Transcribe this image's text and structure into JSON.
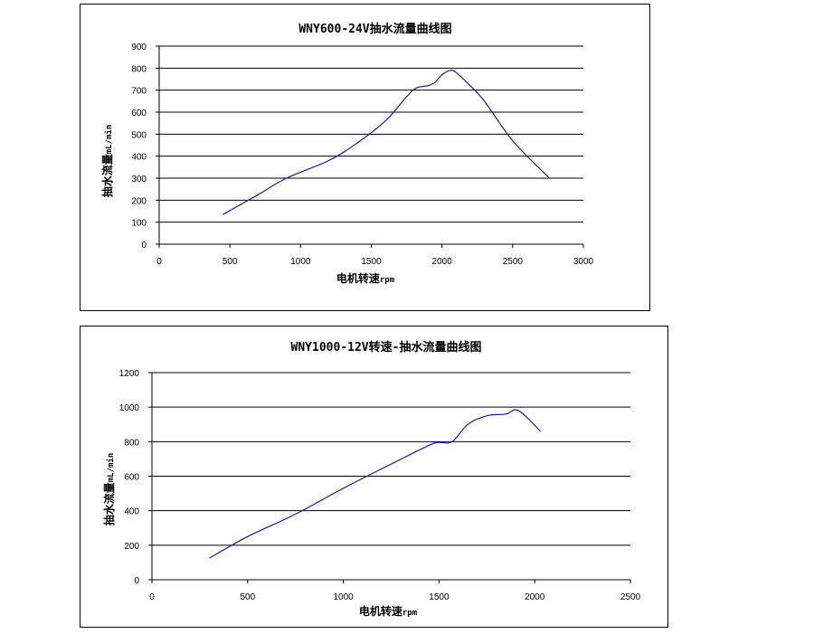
{
  "chart_data": [
    {
      "type": "line",
      "title": "WNY600-24V抽水流量曲线图",
      "xlabel": "电机转速",
      "xlabel_unit": "rpm",
      "ylabel": "抽水流量",
      "ylabel_unit": "mL/min",
      "xlim": [
        0,
        3000
      ],
      "ylim": [
        0,
        900
      ],
      "xticks": [
        0,
        500,
        1000,
        1500,
        2000,
        2500,
        3000
      ],
      "yticks": [
        0,
        100,
        200,
        300,
        400,
        500,
        600,
        700,
        800,
        900
      ],
      "grid": "horizontal",
      "series": [
        {
          "color": "#1a1a8c",
          "x": [
            450,
            700,
            900,
            1200,
            1400,
            1600,
            1750,
            1820,
            1900,
            1950,
            2000,
            2060,
            2100,
            2200,
            2300,
            2500,
            2760
          ],
          "y": [
            135,
            225,
            300,
            380,
            460,
            560,
            670,
            710,
            720,
            735,
            770,
            790,
            780,
            720,
            650,
            470,
            300
          ]
        }
      ]
    },
    {
      "type": "line",
      "title": "WNY1000-12V转速-抽水流量曲线图",
      "xlabel": "电机转速",
      "xlabel_unit": "rpm",
      "ylabel": "抽水流量",
      "ylabel_unit": "mL/min",
      "xlim": [
        0,
        2500
      ],
      "ylim": [
        0,
        1200
      ],
      "xticks": [
        0,
        500,
        1000,
        1500,
        2000,
        2500
      ],
      "yticks": [
        0,
        200,
        400,
        600,
        800,
        1000,
        1200
      ],
      "grid": "horizontal",
      "series": [
        {
          "color": "#1a1a8c",
          "x": [
            300,
            500,
            750,
            1000,
            1250,
            1450,
            1500,
            1570,
            1650,
            1750,
            1850,
            1900,
            1950,
            2030
          ],
          "y": [
            125,
            250,
            380,
            530,
            670,
            780,
            795,
            800,
            900,
            950,
            960,
            985,
            950,
            860
          ]
        }
      ]
    }
  ]
}
